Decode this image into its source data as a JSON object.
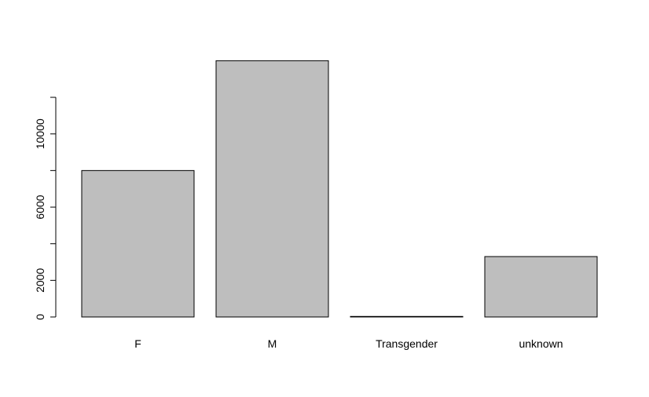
{
  "chart_data": {
    "type": "bar",
    "categories": [
      "F",
      "M",
      "Transgender",
      "unknown"
    ],
    "values": [
      8000,
      14000,
      30,
      3300
    ],
    "yticks": [
      0,
      2000,
      6000,
      10000
    ],
    "ylim": [
      0,
      14000
    ],
    "bar_color": "#bebebe",
    "bar_stroke": "#000000"
  }
}
